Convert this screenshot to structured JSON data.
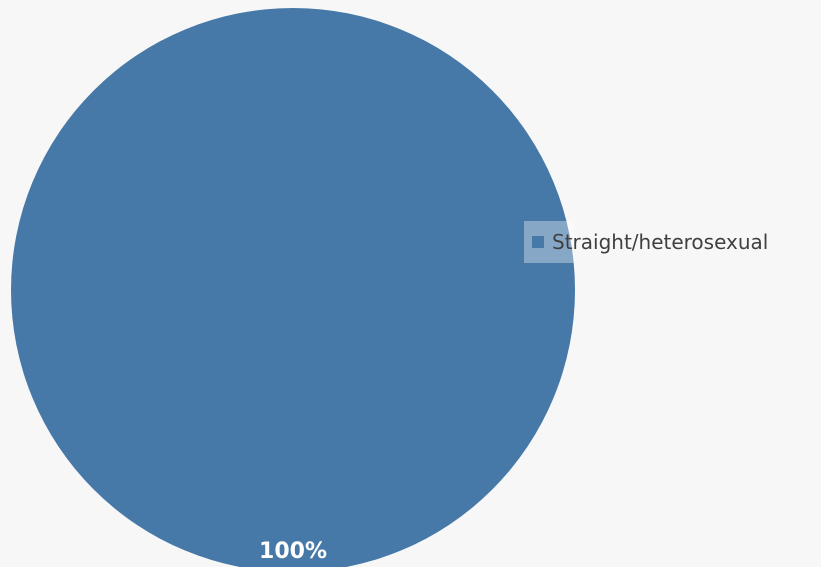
{
  "chart_data": {
    "type": "pie",
    "categories": [
      "Straight/heterosexual"
    ],
    "values": [
      100
    ],
    "value_labels": [
      "100%"
    ],
    "colors": [
      "#4779a8"
    ],
    "legend_position": "right"
  }
}
